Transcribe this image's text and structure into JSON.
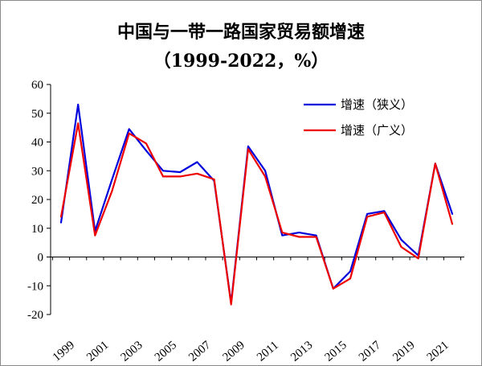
{
  "chart_data": {
    "type": "line",
    "title": "中国与一带一路国家贸易额增速",
    "subtitle": "（1999-2022，%）",
    "x": [
      1999,
      2000,
      2001,
      2002,
      2003,
      2004,
      2005,
      2006,
      2007,
      2008,
      2009,
      2010,
      2011,
      2012,
      2013,
      2014,
      2015,
      2016,
      2017,
      2018,
      2019,
      2020,
      2021,
      2022
    ],
    "x_tick_labels": [
      "1999",
      "2001",
      "2003",
      "2005",
      "2007",
      "2009",
      "2011",
      "2013",
      "2015",
      "2017",
      "2019",
      "2021"
    ],
    "ylim": [
      -20,
      60
    ],
    "y_ticks": [
      -20,
      -10,
      0,
      10,
      20,
      30,
      40,
      50,
      60
    ],
    "grid": false,
    "legend_position": "top-right",
    "series": [
      {
        "name": "增速（狭义）",
        "color": "#0000dd",
        "values": [
          12,
          53,
          9,
          27,
          44.5,
          37,
          30,
          29.5,
          33,
          26.5,
          -16,
          38.5,
          30,
          7.5,
          8.5,
          7.5,
          -11,
          -5,
          15,
          16,
          6,
          0.5,
          32.5,
          15
        ]
      },
      {
        "name": "增速（广义）",
        "color": "#ee0000",
        "values": [
          14,
          46.5,
          7.5,
          23,
          43,
          39.5,
          28,
          28,
          29,
          27,
          -16.5,
          37.5,
          28,
          8.5,
          7,
          7,
          -11,
          -7.5,
          14,
          15.5,
          3.5,
          -0.5,
          32.5,
          11.5
        ]
      }
    ]
  }
}
